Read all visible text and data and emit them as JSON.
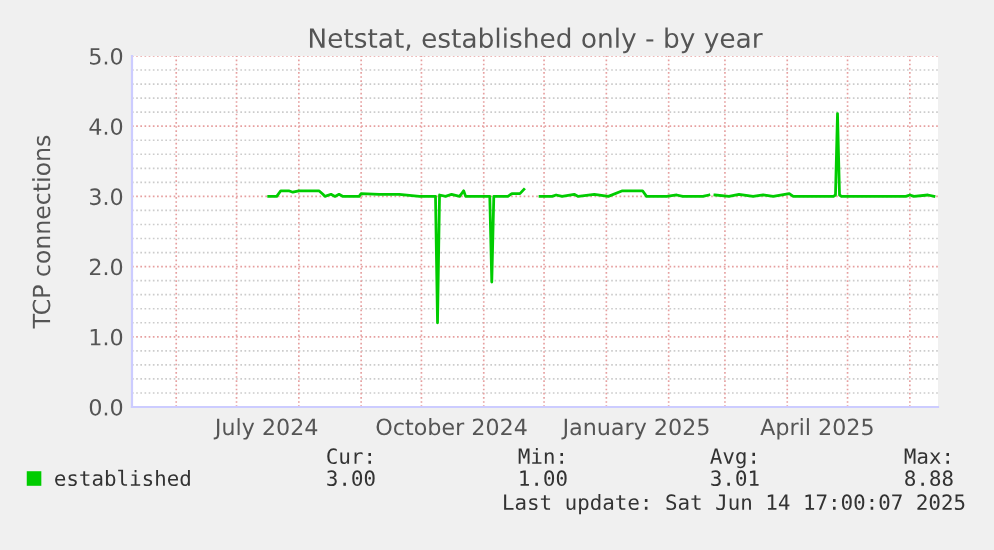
{
  "chart_data": {
    "type": "line",
    "title": "Netstat, established only - by year",
    "ylabel": "TCP connections",
    "x": [
      "2024-07-17",
      "2024-07-21",
      "2024-07-23",
      "2024-07-27",
      "2024-07-29",
      "2024-08-01",
      "2024-08-06",
      "2024-08-09",
      "2024-08-11",
      "2024-08-13",
      "2024-08-14",
      "2024-08-17",
      "2024-08-19",
      "2024-08-21",
      "2024-08-23",
      "2024-08-28",
      "2024-08-31",
      "2024-09-01",
      "2024-09-10",
      "2024-09-20",
      "2024-09-30",
      "2024-10-08",
      "2024-10-09",
      "2024-10-10",
      "2024-10-13",
      "2024-10-16",
      "2024-10-20",
      "2024-10-22",
      "2024-10-23",
      "2024-11-04",
      "2024-11-05",
      "2024-11-06",
      "2024-11-13",
      "2024-11-15",
      "2024-11-19",
      "2024-11-21",
      "2024-11-25",
      "2024-11-29",
      "2024-12-05",
      "2024-12-07",
      "2024-12-10",
      "2024-12-16",
      "2024-12-18",
      "2024-12-26",
      "2025-01-02",
      "2025-01-09",
      "2025-01-19",
      "2025-01-21",
      "2025-01-31",
      "2025-02-05",
      "2025-02-08",
      "2025-02-18",
      "2025-02-21",
      "2025-02-22",
      "2025-02-24",
      "2025-03-03",
      "2025-03-08",
      "2025-03-15",
      "2025-03-20",
      "2025-03-25",
      "2025-04-02",
      "2025-04-04",
      "2025-04-24",
      "2025-04-25",
      "2025-04-26",
      "2025-04-27",
      "2025-04-28",
      "2025-05-15",
      "2025-05-30",
      "2025-06-01",
      "2025-06-03",
      "2025-06-10",
      "2025-06-13"
    ],
    "series": [
      {
        "name": "established",
        "color": "#00cc00",
        "values": [
          3.0,
          3.0,
          3.08,
          3.08,
          3.06,
          3.08,
          3.08,
          3.08,
          3.08,
          3.03,
          3.0,
          3.03,
          3.0,
          3.03,
          3.0,
          3.0,
          3.0,
          3.04,
          3.03,
          3.03,
          3.0,
          3.0,
          1.2,
          3.02,
          3.0,
          3.03,
          3.0,
          3.08,
          3.0,
          3.0,
          1.78,
          3.0,
          3.0,
          3.04,
          3.04,
          3.1,
          null,
          3.0,
          3.0,
          3.02,
          3.0,
          3.03,
          3.0,
          3.03,
          3.0,
          3.08,
          3.08,
          3.0,
          3.0,
          3.02,
          3.0,
          3.0,
          3.02,
          null,
          3.02,
          3.0,
          3.03,
          3.0,
          3.02,
          3.0,
          3.04,
          3.0,
          3.0,
          3.02,
          4.18,
          3.02,
          3.0,
          3.0,
          3.0,
          3.02,
          3.0,
          3.02,
          3.0
        ]
      }
    ],
    "xlim": [
      "2024-05-10",
      "2025-06-15"
    ],
    "xticks": [
      {
        "value": "2024-06-01",
        "label": null
      },
      {
        "value": "2024-07-01",
        "label": null
      },
      {
        "value": "2024-07-16",
        "label": "July 2024"
      },
      {
        "value": "2024-08-01",
        "label": null
      },
      {
        "value": "2024-09-01",
        "label": null
      },
      {
        "value": "2024-10-01",
        "label": null
      },
      {
        "value": "2024-10-16",
        "label": "October 2024"
      },
      {
        "value": "2024-11-01",
        "label": null
      },
      {
        "value": "2024-12-01",
        "label": null
      },
      {
        "value": "2025-01-01",
        "label": null
      },
      {
        "value": "2025-01-16",
        "label": "January 2025"
      },
      {
        "value": "2025-02-01",
        "label": null
      },
      {
        "value": "2025-03-01",
        "label": null
      },
      {
        "value": "2025-04-01",
        "label": null
      },
      {
        "value": "2025-04-16",
        "label": "April 2025"
      },
      {
        "value": "2025-05-01",
        "label": null
      },
      {
        "value": "2025-06-01",
        "label": null
      }
    ],
    "ylim": [
      0,
      5
    ],
    "yticks": [
      {
        "value": 0,
        "label": "0.0"
      },
      {
        "value": 0.2,
        "label": null
      },
      {
        "value": 0.4,
        "label": null
      },
      {
        "value": 0.6,
        "label": null
      },
      {
        "value": 0.8,
        "label": null
      },
      {
        "value": 1,
        "label": "1.0"
      },
      {
        "value": 1.2,
        "label": null
      },
      {
        "value": 1.4,
        "label": null
      },
      {
        "value": 1.6,
        "label": null
      },
      {
        "value": 1.8,
        "label": null
      },
      {
        "value": 2,
        "label": "2.0"
      },
      {
        "value": 2.2,
        "label": null
      },
      {
        "value": 2.4,
        "label": null
      },
      {
        "value": 2.6,
        "label": null
      },
      {
        "value": 2.8,
        "label": null
      },
      {
        "value": 3,
        "label": "3.0"
      },
      {
        "value": 3.2,
        "label": null
      },
      {
        "value": 3.4,
        "label": null
      },
      {
        "value": 3.6,
        "label": null
      },
      {
        "value": 3.8,
        "label": null
      },
      {
        "value": 4,
        "label": "4.0"
      },
      {
        "value": 4.2,
        "label": null
      },
      {
        "value": 4.4,
        "label": null
      },
      {
        "value": 4.6,
        "label": null
      },
      {
        "value": 4.8,
        "label": null
      },
      {
        "value": 5,
        "label": "5.0"
      }
    ],
    "grid": true,
    "legend": "bottom left",
    "line_style": "solid",
    "marker": "none",
    "annotations": [
      "Cur:",
      "3.00",
      "Min:",
      "1.00",
      "Avg:",
      "3.01",
      "Max:",
      "8.88",
      "Last update: Sat Jun 14 17:00:07 2025"
    ]
  }
}
